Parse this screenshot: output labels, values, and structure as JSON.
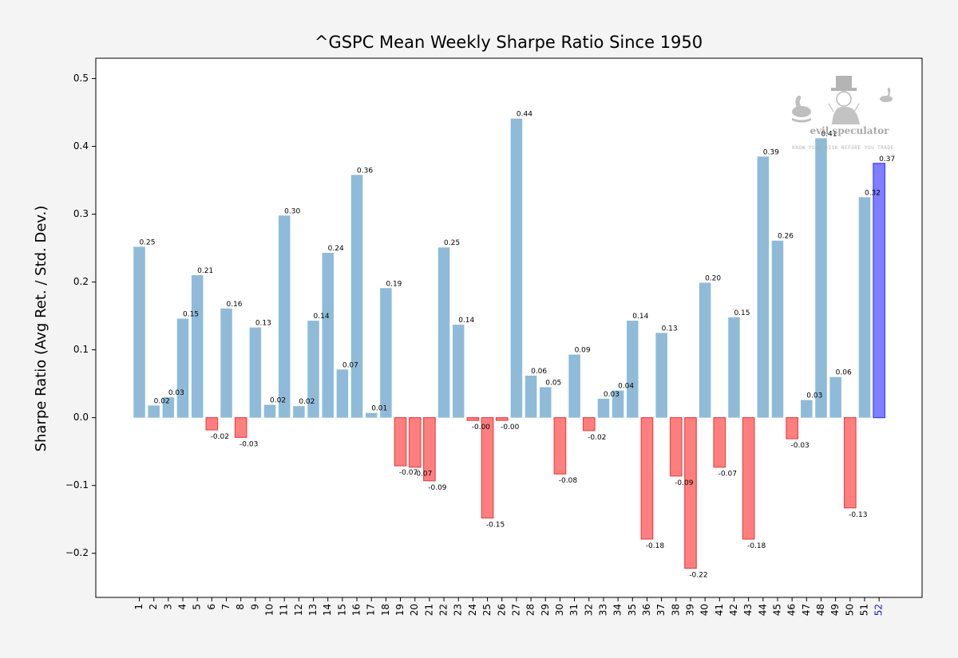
{
  "chart_data": {
    "type": "bar",
    "title": "^GSPC Mean Weekly Sharpe Ratio Since 1950",
    "xlabel": "",
    "ylabel": "Sharpe Ratio (Avg Ret. / Std. Dev.)",
    "ylim": [
      -0.265,
      0.53
    ],
    "yticks": [
      -0.2,
      -0.1,
      0.0,
      0.1,
      0.2,
      0.3,
      0.4,
      0.5
    ],
    "ytick_labels": [
      "−0.2",
      "−0.1",
      "0.0",
      "0.1",
      "0.2",
      "0.3",
      "0.4",
      "0.5"
    ],
    "grid": false,
    "legend": "none",
    "categories": [
      "1",
      "2",
      "3",
      "4",
      "5",
      "6",
      "7",
      "8",
      "9",
      "10",
      "11",
      "12",
      "13",
      "14",
      "15",
      "16",
      "17",
      "18",
      "19",
      "20",
      "21",
      "22",
      "23",
      "24",
      "25",
      "26",
      "27",
      "28",
      "29",
      "30",
      "31",
      "32",
      "33",
      "34",
      "35",
      "36",
      "37",
      "38",
      "39",
      "40",
      "41",
      "42",
      "43",
      "44",
      "45",
      "46",
      "47",
      "48",
      "49",
      "50",
      "51",
      "52"
    ],
    "values": [
      0.252,
      0.018,
      0.03,
      0.146,
      0.21,
      -0.018,
      0.161,
      -0.029,
      0.133,
      0.019,
      0.298,
      0.017,
      0.143,
      0.243,
      0.071,
      0.358,
      0.007,
      0.191,
      -0.071,
      -0.073,
      -0.093,
      0.251,
      0.137,
      -0.004,
      -0.148,
      -0.004,
      0.441,
      0.062,
      0.045,
      -0.083,
      0.093,
      -0.019,
      0.028,
      0.04,
      0.143,
      -0.179,
      0.125,
      -0.086,
      -0.222,
      0.199,
      -0.073,
      0.148,
      -0.179,
      0.385,
      0.261,
      -0.031,
      0.026,
      0.412,
      0.06,
      -0.133,
      0.325,
      0.375
    ],
    "value_labels": [
      "0.25",
      "0.02",
      "0.03",
      "0.15",
      "0.21",
      "-0.02",
      "0.16",
      "-0.03",
      "0.13",
      "0.02",
      "0.30",
      "0.02",
      "0.14",
      "0.24",
      "0.07",
      "0.36",
      "0.01",
      "0.19",
      "-0.07",
      "-0.07",
      "-0.09",
      "0.25",
      "0.14",
      "-0.00",
      "-0.15",
      "-0.00",
      "0.44",
      "0.06",
      "0.05",
      "-0.08",
      "0.09",
      "-0.02",
      "0.03",
      "0.04",
      "0.14",
      "-0.18",
      "0.13",
      "-0.09",
      "-0.22",
      "0.20",
      "-0.07",
      "0.15",
      "-0.18",
      "0.39",
      "0.26",
      "-0.03",
      "0.03",
      "0.41",
      "0.06",
      "-0.13",
      "0.32",
      "0.37"
    ],
    "highlight_category": "52",
    "colors": {
      "positive": "#8fbbd9",
      "negative_fill": "#ff7f7f",
      "negative_edge": "#e8474a",
      "highlight_fill": "#7f7fff",
      "highlight_edge": "#4040ff",
      "highlight_tick": "#1a1acc"
    }
  },
  "watermark": {
    "name": "evil speculator",
    "tagline": "KNOW YOUR RISK BEFORE YOU TRADE"
  }
}
